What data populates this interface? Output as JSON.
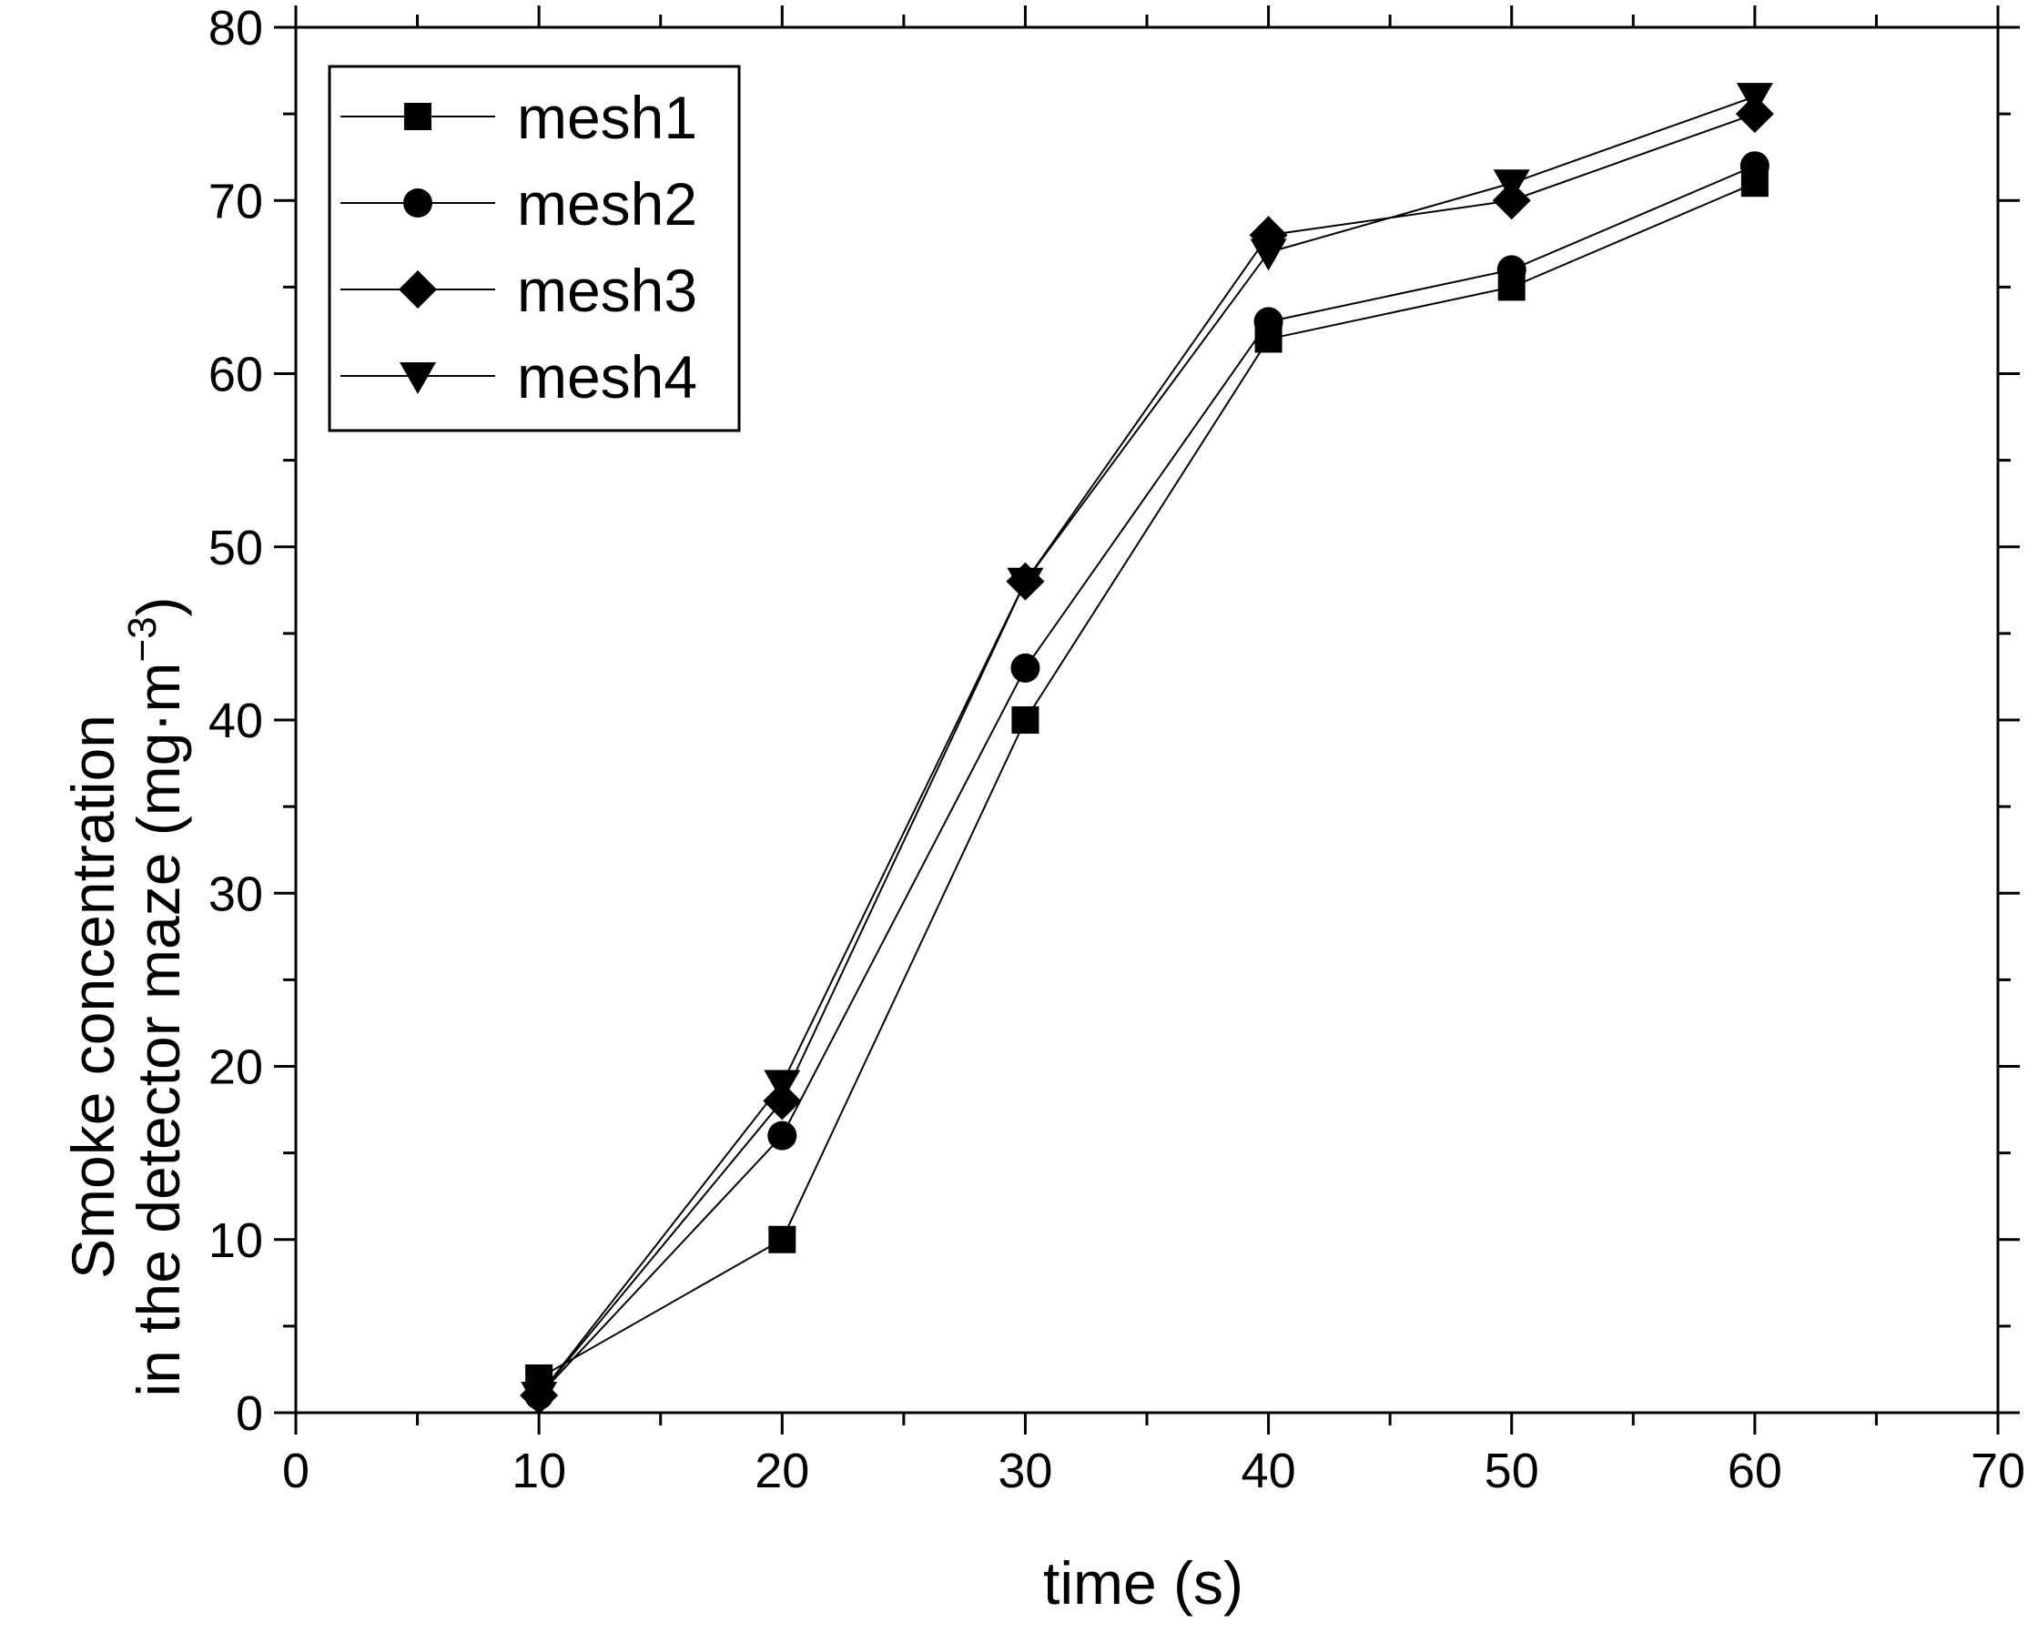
{
  "chart_data": {
    "type": "line",
    "title": "",
    "xlabel": "time (s)",
    "ylabel_line1": "Smoke concentration",
    "ylabel_line2": "in the detector maze (mg·m",
    "ylabel_exponent": "−3",
    "ylabel_close": ")",
    "xlim": [
      0,
      70
    ],
    "ylim": [
      0,
      80
    ],
    "x_ticks": [
      0,
      10,
      20,
      30,
      40,
      50,
      60,
      70
    ],
    "y_ticks": [
      0,
      10,
      20,
      30,
      40,
      50,
      60,
      70,
      80
    ],
    "grid": false,
    "legend_position": "top-left",
    "x": [
      10,
      20,
      30,
      40,
      50,
      60
    ],
    "series": [
      {
        "name": "mesh1",
        "marker": "square",
        "values": [
          2,
          10,
          40,
          62,
          65,
          71
        ]
      },
      {
        "name": "mesh2",
        "marker": "circle",
        "values": [
          1,
          16,
          43,
          63,
          66,
          72
        ]
      },
      {
        "name": "mesh3",
        "marker": "diamond",
        "values": [
          1,
          18,
          48,
          68,
          70,
          75
        ]
      },
      {
        "name": "mesh4",
        "marker": "triangle-down",
        "values": [
          1,
          19,
          48,
          67,
          71,
          76
        ]
      }
    ],
    "line_color": "#000000",
    "marker_color": "#000000"
  }
}
